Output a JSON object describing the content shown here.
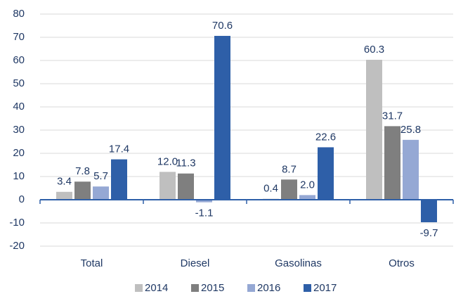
{
  "chart_data": {
    "type": "bar",
    "categories": [
      "Total",
      "Diesel",
      "Gasolinas",
      "Otros"
    ],
    "series": [
      {
        "name": "2014",
        "color": "#bfbfbf",
        "values": [
          3.4,
          12.0,
          0.4,
          60.3
        ],
        "value_labels": [
          "3.4",
          "12.0",
          "0.4",
          "60.3"
        ]
      },
      {
        "name": "2015",
        "color": "#7f7f7f",
        "values": [
          7.8,
          11.3,
          8.7,
          31.7
        ],
        "value_labels": [
          "7.8",
          "11.3",
          "8.7",
          "31.7"
        ]
      },
      {
        "name": "2016",
        "color": "#95a8d4",
        "values": [
          5.7,
          -1.1,
          2.0,
          25.8
        ],
        "value_labels": [
          "5.7",
          "-1.1",
          "2.0",
          "25.8"
        ]
      },
      {
        "name": "2017",
        "color": "#2e5fa8",
        "values": [
          17.4,
          70.6,
          22.6,
          -9.7
        ],
        "value_labels": [
          "17.4",
          "70.6",
          "22.6",
          "-9.7"
        ]
      }
    ],
    "ylim": [
      -20,
      80
    ],
    "yticks": [
      -20,
      -10,
      0,
      10,
      20,
      30,
      40,
      50,
      60,
      70,
      80
    ],
    "grid": true,
    "legend": "bottom"
  }
}
